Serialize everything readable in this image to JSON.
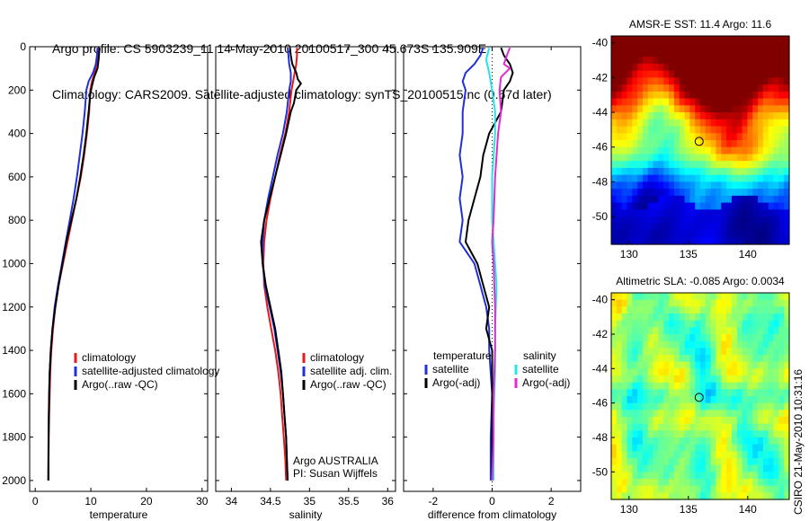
{
  "header": {
    "line1": "Argo profile: CS 5903239_11 14-May-2010 20100517_300 45.673S 135.909E",
    "line2": "Climatology: CARS2009. Satellite-adjusted climatology: synTS_20100515.nc (0.57d later)"
  },
  "footer": {
    "stamp": "CSIRO 21-May-2010 10:31:16"
  },
  "colors": {
    "climatology": "#e41a1c",
    "satellite": "#1f30d6",
    "argo": "#000000",
    "satellite_salinity": "#22e6e6",
    "argo_salinity": "#e22ad1"
  },
  "chart_data": [
    {
      "id": "temperature",
      "type": "line",
      "xlabel": "temperature",
      "xlim": [
        -1,
        31
      ],
      "ylim": [
        2050,
        0
      ],
      "xticks": [
        0,
        10,
        20,
        30
      ],
      "yticks": [
        0,
        200,
        400,
        600,
        800,
        1000,
        1200,
        1400,
        1600,
        1800,
        2000
      ],
      "legend": [
        "climatology",
        "satellite-adjusted climatology",
        "Argo(..raw -QC)"
      ],
      "series": [
        {
          "name": "climatology",
          "color": "#e41a1c",
          "points": [
            [
              11.3,
              5
            ],
            [
              11.2,
              40
            ],
            [
              11.0,
              80
            ],
            [
              10.7,
              120
            ],
            [
              10.2,
              160
            ],
            [
              9.9,
              200
            ],
            [
              9.7,
              300
            ],
            [
              9.3,
              400
            ],
            [
              8.8,
              500
            ],
            [
              8.2,
              600
            ],
            [
              7.4,
              700
            ],
            [
              6.6,
              800
            ],
            [
              5.8,
              900
            ],
            [
              5.0,
              1000
            ],
            [
              4.2,
              1100
            ],
            [
              3.6,
              1200
            ],
            [
              3.2,
              1300
            ],
            [
              2.9,
              1400
            ],
            [
              2.7,
              1500
            ],
            [
              2.6,
              1600
            ],
            [
              2.5,
              1700
            ],
            [
              2.45,
              1800
            ],
            [
              2.4,
              1900
            ],
            [
              2.38,
              2000
            ]
          ]
        },
        {
          "name": "satellite-adjusted climatology",
          "color": "#1f30d6",
          "points": [
            [
              11.2,
              5
            ],
            [
              11.1,
              40
            ],
            [
              10.9,
              80
            ],
            [
              10.4,
              120
            ],
            [
              9.6,
              160
            ],
            [
              9.2,
              200
            ],
            [
              8.9,
              300
            ],
            [
              8.5,
              400
            ],
            [
              8.0,
              500
            ],
            [
              7.5,
              600
            ],
            [
              6.9,
              700
            ],
            [
              6.2,
              800
            ],
            [
              5.5,
              900
            ],
            [
              4.8,
              1000
            ],
            [
              4.1,
              1100
            ],
            [
              3.5,
              1200
            ],
            [
              3.1,
              1300
            ],
            [
              2.8,
              1400
            ],
            [
              2.6,
              1500
            ],
            [
              2.5,
              1600
            ],
            [
              2.45,
              1700
            ],
            [
              2.4,
              1800
            ],
            [
              2.37,
              1900
            ],
            [
              2.35,
              2000
            ]
          ]
        },
        {
          "name": "Argo(..raw -QC)",
          "color": "#000000",
          "points": [
            [
              11.6,
              5
            ],
            [
              11.5,
              30
            ],
            [
              11.4,
              60
            ],
            [
              11.2,
              100
            ],
            [
              10.6,
              140
            ],
            [
              10.2,
              180
            ],
            [
              9.9,
              220
            ],
            [
              9.6,
              300
            ],
            [
              9.2,
              400
            ],
            [
              8.7,
              500
            ],
            [
              8.1,
              600
            ],
            [
              7.4,
              700
            ],
            [
              6.5,
              800
            ],
            [
              5.6,
              900
            ],
            [
              4.9,
              1000
            ],
            [
              4.2,
              1100
            ],
            [
              3.6,
              1200
            ],
            [
              3.1,
              1300
            ],
            [
              2.8,
              1400
            ],
            [
              2.6,
              1500
            ],
            [
              2.5,
              1600
            ],
            [
              2.45,
              1700
            ],
            [
              2.4,
              1800
            ],
            [
              2.38,
              1900
            ],
            [
              2.36,
              2000
            ]
          ]
        }
      ]
    },
    {
      "id": "salinity",
      "type": "line",
      "xlabel": "salinity",
      "xlim": [
        33.8,
        36.1
      ],
      "ylim": [
        2050,
        0
      ],
      "xticks": [
        34,
        34.5,
        35,
        35.5,
        36
      ],
      "xticklabels": [
        "34",
        "34.5",
        "35",
        "35.5",
        "36"
      ],
      "legend": [
        "climatology",
        "satellite adj. clim.",
        "Argo(..raw -QC)"
      ],
      "note": [
        "Argo AUSTRALIA",
        "PI: Susan Wijffels"
      ],
      "series": [
        {
          "name": "climatology",
          "color": "#e41a1c",
          "points": [
            [
              34.84,
              5
            ],
            [
              34.84,
              40
            ],
            [
              34.83,
              80
            ],
            [
              34.81,
              120
            ],
            [
              34.79,
              160
            ],
            [
              34.77,
              200
            ],
            [
              34.74,
              300
            ],
            [
              34.69,
              400
            ],
            [
              34.62,
              500
            ],
            [
              34.56,
              600
            ],
            [
              34.5,
              700
            ],
            [
              34.45,
              800
            ],
            [
              34.42,
              900
            ],
            [
              34.41,
              1000
            ],
            [
              34.42,
              1100
            ],
            [
              34.46,
              1200
            ],
            [
              34.51,
              1300
            ],
            [
              34.56,
              1400
            ],
            [
              34.6,
              1500
            ],
            [
              34.63,
              1600
            ],
            [
              34.65,
              1700
            ],
            [
              34.67,
              1800
            ],
            [
              34.69,
              1900
            ],
            [
              34.7,
              2000
            ]
          ]
        },
        {
          "name": "satellite adj. clim.",
          "color": "#1f30d6",
          "points": [
            [
              34.72,
              5
            ],
            [
              34.73,
              40
            ],
            [
              34.74,
              80
            ],
            [
              34.76,
              120
            ],
            [
              34.76,
              160
            ],
            [
              34.74,
              200
            ],
            [
              34.71,
              300
            ],
            [
              34.66,
              400
            ],
            [
              34.59,
              500
            ],
            [
              34.53,
              600
            ],
            [
              34.47,
              700
            ],
            [
              34.42,
              800
            ],
            [
              34.4,
              900
            ],
            [
              34.4,
              1000
            ],
            [
              34.43,
              1100
            ],
            [
              34.49,
              1200
            ],
            [
              34.55,
              1300
            ],
            [
              34.59,
              1400
            ],
            [
              34.63,
              1500
            ],
            [
              34.66,
              1600
            ],
            [
              34.68,
              1700
            ],
            [
              34.7,
              1800
            ],
            [
              34.71,
              1900
            ],
            [
              34.72,
              2000
            ]
          ]
        },
        {
          "name": "Argo(..raw -QC)",
          "color": "#000000",
          "points": [
            [
              34.75,
              5
            ],
            [
              34.76,
              40
            ],
            [
              34.78,
              80
            ],
            [
              34.83,
              120
            ],
            [
              34.85,
              150
            ],
            [
              34.89,
              170
            ],
            [
              34.83,
              200
            ],
            [
              34.8,
              260
            ],
            [
              34.76,
              300
            ],
            [
              34.7,
              400
            ],
            [
              34.63,
              500
            ],
            [
              34.56,
              600
            ],
            [
              34.49,
              700
            ],
            [
              34.42,
              800
            ],
            [
              34.38,
              900
            ],
            [
              34.4,
              1000
            ],
            [
              34.44,
              1100
            ],
            [
              34.5,
              1200
            ],
            [
              34.56,
              1300
            ],
            [
              34.6,
              1400
            ],
            [
              34.64,
              1500
            ],
            [
              34.66,
              1600
            ],
            [
              34.68,
              1700
            ],
            [
              34.7,
              1800
            ],
            [
              34.71,
              1900
            ],
            [
              34.72,
              2000
            ]
          ]
        }
      ]
    },
    {
      "id": "difference",
      "type": "line",
      "xlabel": "difference from climatology",
      "xlim": [
        -3,
        3
      ],
      "ylim": [
        2050,
        0
      ],
      "xticks": [
        -2,
        0,
        2
      ],
      "xticklabels": [
        "-2",
        "0",
        "2"
      ],
      "legend_headers": [
        "temperature",
        "salinity"
      ],
      "legend_temperature": [
        "satellite",
        "Argo(-adj)"
      ],
      "legend_salinity": [
        "satellite",
        "Argo(-adj)"
      ],
      "series": [
        {
          "name": "temperature satellite",
          "color": "#1f30d6",
          "points": [
            [
              -0.3,
              5
            ],
            [
              -0.4,
              40
            ],
            [
              -0.6,
              80
            ],
            [
              -0.9,
              120
            ],
            [
              -1.0,
              160
            ],
            [
              -0.9,
              200
            ],
            [
              -1.0,
              300
            ],
            [
              -1.0,
              400
            ],
            [
              -1.1,
              500
            ],
            [
              -1.0,
              600
            ],
            [
              -1.1,
              700
            ],
            [
              -1.0,
              800
            ],
            [
              -1.1,
              900
            ],
            [
              -0.9,
              940
            ],
            [
              -0.6,
              1000
            ],
            [
              -0.4,
              1100
            ],
            [
              -0.2,
              1200
            ],
            [
              -0.1,
              1300
            ],
            [
              -0.1,
              1400
            ],
            [
              0.0,
              1600
            ],
            [
              -0.05,
              1800
            ],
            [
              -0.05,
              2000
            ]
          ]
        },
        {
          "name": "temperature Argo(-adj)",
          "color": "#000000",
          "points": [
            [
              0.3,
              5
            ],
            [
              0.4,
              40
            ],
            [
              0.6,
              80
            ],
            [
              0.7,
              120
            ],
            [
              0.6,
              160
            ],
            [
              0.4,
              200
            ],
            [
              0.3,
              300
            ],
            [
              -0.1,
              400
            ],
            [
              -0.3,
              500
            ],
            [
              -0.4,
              600
            ],
            [
              -0.6,
              700
            ],
            [
              -0.8,
              800
            ],
            [
              -0.9,
              900
            ],
            [
              -0.7,
              950
            ],
            [
              -0.5,
              1000
            ],
            [
              -0.3,
              1100
            ],
            [
              -0.1,
              1200
            ],
            [
              -0.2,
              1300
            ],
            [
              0.0,
              1400
            ],
            [
              0.0,
              1600
            ],
            [
              0.0,
              1800
            ],
            [
              0.0,
              2000
            ]
          ]
        },
        {
          "name": "salinity satellite",
          "color": "#22e6e6",
          "points": [
            [
              -0.1,
              5
            ],
            [
              -0.2,
              60
            ],
            [
              -0.1,
              120
            ],
            [
              0.0,
              200
            ],
            [
              0.1,
              300
            ],
            [
              0.1,
              400
            ],
            [
              0.0,
              600
            ],
            [
              0.0,
              800
            ],
            [
              0.1,
              1000
            ],
            [
              0.15,
              1100
            ],
            [
              0.1,
              1300
            ],
            [
              0.1,
              1500
            ],
            [
              0.05,
              1700
            ],
            [
              0.05,
              2000
            ]
          ]
        },
        {
          "name": "salinity Argo(-adj)",
          "color": "#e22ad1",
          "points": [
            [
              0.6,
              5
            ],
            [
              0.5,
              40
            ],
            [
              0.4,
              80
            ],
            [
              0.6,
              100
            ],
            [
              0.3,
              140
            ],
            [
              0.25,
              200
            ],
            [
              0.3,
              300
            ],
            [
              0.2,
              400
            ],
            [
              0.1,
              600
            ],
            [
              0.05,
              800
            ],
            [
              0.0,
              900
            ],
            [
              0.05,
              1000
            ],
            [
              0.1,
              1200
            ],
            [
              0.1,
              1400
            ],
            [
              0.05,
              1600
            ],
            [
              0.05,
              1800
            ],
            [
              0.0,
              2000
            ]
          ]
        }
      ]
    },
    {
      "id": "sst-map",
      "type": "heatmap",
      "title": "AMSR-E SST: 11.4 Argo: 11.6",
      "xlim": [
        128.5,
        143.5
      ],
      "ylim": [
        -51.6,
        -39.6
      ],
      "xticks": [
        130,
        135,
        140
      ],
      "yticks": [
        -40,
        -42,
        -44,
        -46,
        -48,
        -50
      ],
      "argo_position": {
        "lon": 135.909,
        "lat": -45.673
      }
    },
    {
      "id": "sla-map",
      "type": "heatmap",
      "title": "Altimetric SLA: -0.085 Argo: 0.0034",
      "xlim": [
        128.5,
        143.5
      ],
      "ylim": [
        -51.6,
        -39.6
      ],
      "xticks": [
        130,
        135,
        140
      ],
      "yticks": [
        -40,
        -42,
        -44,
        -46,
        -48,
        -50
      ],
      "argo_position": {
        "lon": 135.909,
        "lat": -45.673
      }
    }
  ]
}
